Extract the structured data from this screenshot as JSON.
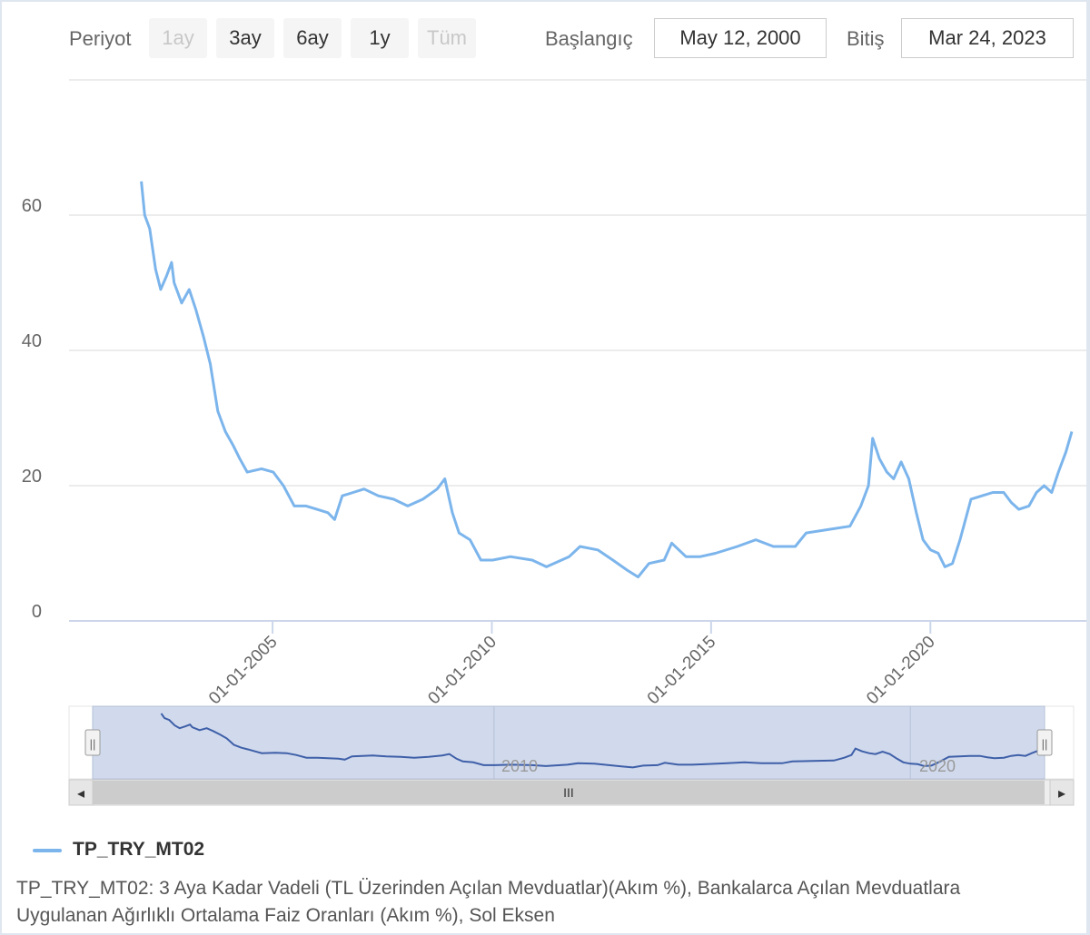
{
  "toolbar": {
    "period_label": "Periyot",
    "ranges": [
      {
        "label": "1ay",
        "enabled": false
      },
      {
        "label": "3ay",
        "enabled": true
      },
      {
        "label": "6ay",
        "enabled": true
      },
      {
        "label": "1y",
        "enabled": true
      },
      {
        "label": "Tüm",
        "enabled": false
      }
    ],
    "start_label": "Başlangıç",
    "start_value": "May 12, 2000",
    "end_label": "Bitiş",
    "end_value": "Mar 24, 2023"
  },
  "navigator": {
    "tick_labels": [
      "2010",
      "2020"
    ],
    "handle_glyph": "||",
    "grip_glyph": "III",
    "left_arrow": "◂",
    "right_arrow": "▸"
  },
  "chart_data": {
    "type": "line",
    "x_axis": {
      "type": "date",
      "tick_labels": [
        "01-01-2005",
        "01-01-2010",
        "01-01-2015",
        "01-01-2020"
      ],
      "range": [
        "2000-05-12",
        "2023-03-24"
      ]
    },
    "y_axis": {
      "ticks": [
        0,
        20,
        40,
        60
      ],
      "range": [
        0,
        80
      ],
      "grid": true
    },
    "legend_position": "bottom-left",
    "colors": {
      "series": "#7cb5ec",
      "navigator_series": "#3e5fa8",
      "navigator_fill": "#ccd6eb",
      "grid": "#e6e6e6"
    },
    "series": [
      {
        "name": "TP_TRY_MT02",
        "points": [
          [
            "2002-01-04",
            65.0
          ],
          [
            "2002-02-01",
            60.0
          ],
          [
            "2002-03-15",
            58.0
          ],
          [
            "2002-05-03",
            52.0
          ],
          [
            "2002-06-14",
            49.0
          ],
          [
            "2002-08-02",
            51.0
          ],
          [
            "2002-09-13",
            53.0
          ],
          [
            "2002-10-04",
            50.0
          ],
          [
            "2002-12-06",
            47.0
          ],
          [
            "2003-02-07",
            49.0
          ],
          [
            "2003-04-04",
            46.0
          ],
          [
            "2003-06-06",
            42.0
          ],
          [
            "2003-08-01",
            38.0
          ],
          [
            "2003-10-03",
            31.0
          ],
          [
            "2003-12-05",
            28.0
          ],
          [
            "2004-02-06",
            26.0
          ],
          [
            "2004-04-02",
            24.0
          ],
          [
            "2004-06-04",
            22.0
          ],
          [
            "2004-10-01",
            22.5
          ],
          [
            "2005-01-07",
            22.0
          ],
          [
            "2005-04-01",
            20.0
          ],
          [
            "2005-07-01",
            17.0
          ],
          [
            "2005-10-07",
            17.0
          ],
          [
            "2006-01-06",
            16.5
          ],
          [
            "2006-04-07",
            16.0
          ],
          [
            "2006-06-02",
            15.0
          ],
          [
            "2006-08-04",
            18.5
          ],
          [
            "2006-11-03",
            19.0
          ],
          [
            "2007-02-02",
            19.5
          ],
          [
            "2007-06-01",
            18.5
          ],
          [
            "2007-10-05",
            18.0
          ],
          [
            "2008-02-01",
            17.0
          ],
          [
            "2008-06-06",
            18.0
          ],
          [
            "2008-10-03",
            19.5
          ],
          [
            "2008-12-05",
            21.0
          ],
          [
            "2009-02-06",
            16.0
          ],
          [
            "2009-04-03",
            13.0
          ],
          [
            "2009-07-03",
            12.0
          ],
          [
            "2009-10-02",
            9.0
          ],
          [
            "2010-01-08",
            9.0
          ],
          [
            "2010-06-04",
            9.5
          ],
          [
            "2010-12-03",
            9.0
          ],
          [
            "2011-04-01",
            8.0
          ],
          [
            "2011-10-07",
            9.5
          ],
          [
            "2012-01-06",
            11.0
          ],
          [
            "2012-06-01",
            10.5
          ],
          [
            "2012-10-05",
            9.0
          ],
          [
            "2013-02-01",
            7.5
          ],
          [
            "2013-05-03",
            6.5
          ],
          [
            "2013-08-02",
            8.5
          ],
          [
            "2013-12-06",
            9.0
          ],
          [
            "2014-02-07",
            11.5
          ],
          [
            "2014-06-06",
            9.5
          ],
          [
            "2014-10-03",
            9.5
          ],
          [
            "2015-02-06",
            10.0
          ],
          [
            "2015-08-07",
            11.0
          ],
          [
            "2016-01-08",
            12.0
          ],
          [
            "2016-06-03",
            11.0
          ],
          [
            "2016-12-02",
            11.0
          ],
          [
            "2017-03-03",
            13.0
          ],
          [
            "2017-09-01",
            13.5
          ],
          [
            "2018-03-02",
            14.0
          ],
          [
            "2018-06-01",
            17.0
          ],
          [
            "2018-08-03",
            20.0
          ],
          [
            "2018-09-07",
            27.0
          ],
          [
            "2018-11-02",
            24.0
          ],
          [
            "2019-01-04",
            22.0
          ],
          [
            "2019-03-01",
            21.0
          ],
          [
            "2019-05-03",
            23.5
          ],
          [
            "2019-07-05",
            21.0
          ],
          [
            "2019-09-06",
            16.0
          ],
          [
            "2019-11-01",
            12.0
          ],
          [
            "2020-01-03",
            10.5
          ],
          [
            "2020-03-06",
            10.0
          ],
          [
            "2020-05-01",
            8.0
          ],
          [
            "2020-07-03",
            8.5
          ],
          [
            "2020-09-04",
            12.0
          ],
          [
            "2020-12-04",
            18.0
          ],
          [
            "2021-03-05",
            18.5
          ],
          [
            "2021-06-04",
            19.0
          ],
          [
            "2021-09-03",
            19.0
          ],
          [
            "2021-11-05",
            17.5
          ],
          [
            "2022-01-07",
            16.5
          ],
          [
            "2022-04-01",
            17.0
          ],
          [
            "2022-06-03",
            19.0
          ],
          [
            "2022-08-05",
            20.0
          ],
          [
            "2022-10-07",
            19.0
          ],
          [
            "2022-12-02",
            22.0
          ],
          [
            "2023-02-03",
            25.0
          ],
          [
            "2023-03-24",
            28.0
          ]
        ]
      }
    ]
  },
  "legend": {
    "name": "TP_TRY_MT02"
  },
  "description": "TP_TRY_MT02: 3 Aya Kadar Vadeli (TL Üzerinden Açılan Mevduatlar)(Akım %), Bankalarca Açılan Mevduatlara Uygulanan Ağırlıklı Ortalama Faiz Oranları (Akım %), Sol Eksen"
}
